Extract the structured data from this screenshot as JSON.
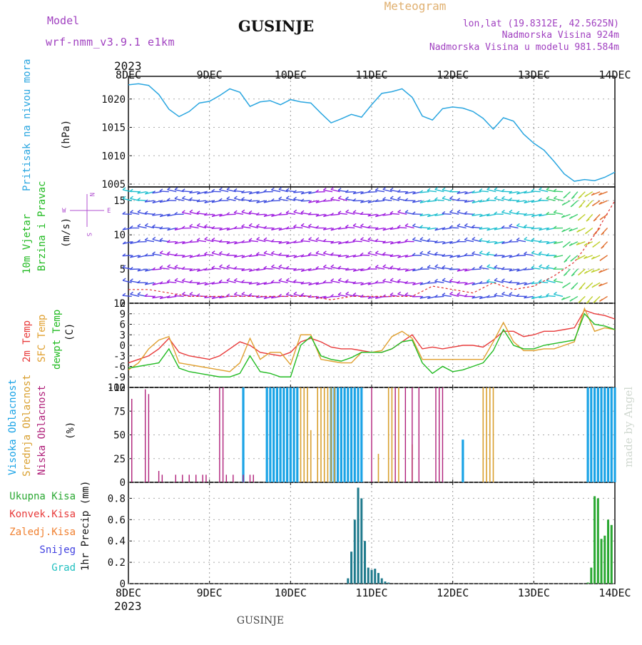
{
  "header": {
    "model_label": "Model",
    "model_name": "wrf-nmm_v3.9.1 e1km",
    "station": "GUSINJE",
    "meteogram_label": "Meteogram",
    "lonlat": "lon,lat (19.8312E, 42.5625N)",
    "elevation": "Nadmorska Visina 924m",
    "model_elevation": "Nadmorska Visina u modelu 981.584m",
    "year_top": "2023",
    "year_bottom": "2023",
    "footer_station": "GUSINJE",
    "watermark": "made by Angel"
  },
  "colors": {
    "pressure": "#2aa6e0",
    "temp2m": "#e83a3a",
    "sfc": "#e0a030",
    "dewpt": "#22bb22",
    "high_cloud": "#1aa3e6",
    "mid_cloud": "#d9a030",
    "low_cloud": "#b0207a",
    "precip_total": "#2aa832",
    "precip_conv": "#e83a3a",
    "freezing": "#f08030",
    "snow": "#4040e0",
    "graupel": "#20c0c0",
    "purple_text": "#a040c0",
    "meteogram_text": "#e0b070"
  },
  "panel_labels": {
    "pressure": {
      "line1": "Pritisak na nivou mora",
      "unit": "(hPa)"
    },
    "wind": {
      "line1": "10m Vjetar",
      "line2": "Brzina i Pravac",
      "unit": "(m/s)",
      "compass_n": "N",
      "compass_w": "W",
      "compass_e": "E",
      "compass_s": "S"
    },
    "temp": {
      "line1": "2m Temp",
      "line2": "SFC Temp",
      "line3": "dewpt Temp",
      "unit": "(C)"
    },
    "cloud": {
      "line1": "Visoka Oblacnost",
      "line2": "Srednja Oblacnost",
      "line3": "Niska Oblacnost",
      "unit": "(%)"
    },
    "precip": {
      "legend": [
        "Ukupna Kisa",
        "Konvek.Kisa",
        "Zaledj.Kisa",
        "Snijeg",
        "Grad"
      ],
      "unit": "1hr Precip (mm)"
    }
  },
  "chart_data": [
    {
      "type": "line",
      "panel": "pressure",
      "x_dates": [
        "8DEC",
        "9DEC",
        "10DEC",
        "11DEC",
        "12DEC",
        "13DEC",
        "14DEC"
      ],
      "ylim": [
        1004.5,
        1024
      ],
      "yticks": [
        1005,
        1010,
        1015,
        1020
      ],
      "series": [
        {
          "x_hours": [
            0,
            3,
            6,
            9,
            12,
            15,
            18,
            21,
            24,
            27,
            30,
            33,
            36,
            39,
            42,
            45,
            48,
            51,
            54,
            57,
            60,
            63,
            66,
            69,
            72,
            75,
            78,
            81,
            84,
            87,
            90,
            93,
            96,
            99,
            102,
            105,
            108,
            111,
            114,
            117,
            120,
            123,
            126,
            129,
            132,
            135,
            138,
            141,
            144
          ],
          "values": [
            1022.5,
            1022.7,
            1022.4,
            1020.8,
            1018.2,
            1016.9,
            1017.8,
            1019.3,
            1019.6,
            1020.6,
            1021.8,
            1021.2,
            1018.7,
            1019.5,
            1019.7,
            1019.0,
            1019.9,
            1019.5,
            1019.3,
            1017.5,
            1015.8,
            1016.5,
            1017.3,
            1016.8,
            1019.0,
            1021.0,
            1021.3,
            1021.8,
            1020.3,
            1017.0,
            1016.3,
            1018.3,
            1018.6,
            1018.4,
            1017.8,
            1016.6,
            1014.7,
            1016.7,
            1016.1,
            1013.8,
            1012.2,
            1011.0,
            1009.0,
            1006.8,
            1005.5,
            1005.8,
            1005.6,
            1006.2,
            1007.1
          ]
        }
      ]
    },
    {
      "type": "barbs",
      "panel": "wind",
      "ylim": [
        0,
        17
      ],
      "yticks": [
        0,
        5,
        10,
        15
      ],
      "wind_speed": {
        "x_hours": [
          0,
          6,
          12,
          18,
          24,
          30,
          36,
          42,
          48,
          54,
          60,
          66,
          72,
          78,
          84,
          90,
          96,
          102,
          108,
          114,
          120,
          126,
          132,
          138,
          144
        ],
        "values": [
          2,
          2,
          1.5,
          1,
          1,
          1,
          1,
          1,
          1,
          1,
          0.5,
          1,
          1,
          1,
          1,
          2.5,
          2,
          1.5,
          3,
          2,
          2.5,
          4,
          6,
          10,
          15
        ]
      }
    },
    {
      "type": "line",
      "panel": "temperature",
      "ylim": [
        -12,
        12
      ],
      "yticks": [
        12,
        9,
        6,
        3,
        0,
        -3,
        -6,
        -9,
        -12
      ],
      "x_hours": [
        0,
        3,
        6,
        9,
        12,
        15,
        18,
        21,
        24,
        27,
        30,
        33,
        36,
        39,
        42,
        45,
        48,
        51,
        54,
        57,
        60,
        63,
        66,
        69,
        72,
        75,
        78,
        81,
        84,
        87,
        90,
        93,
        96,
        99,
        102,
        105,
        108,
        111,
        114,
        117,
        120,
        123,
        126,
        129,
        132,
        135,
        138,
        141,
        144
      ],
      "series": [
        {
          "name": "2m Temp",
          "values": [
            -5,
            -4,
            -3,
            -1,
            2,
            -2,
            -3,
            -3.5,
            -4,
            -3,
            -1,
            1,
            0,
            -2,
            -2.5,
            -3,
            -2,
            1,
            2,
            1,
            -0.5,
            -1,
            -1,
            -1.5,
            -2,
            -2,
            -1,
            1,
            3,
            -1,
            -0.5,
            -1,
            -0.5,
            0,
            0,
            -0.5,
            1.5,
            4,
            4,
            2.5,
            3,
            4,
            4,
            4.5,
            5,
            10,
            9,
            8.5,
            7.5
          ]
        },
        {
          "name": "SFC Temp",
          "values": [
            -7,
            -5,
            -1,
            1.5,
            2.5,
            -5,
            -5.5,
            -6,
            -6.5,
            -7,
            -7.5,
            -5,
            2,
            -4,
            -2,
            -2,
            -5.5,
            3,
            3,
            -4,
            -4.5,
            -5,
            -5,
            -2,
            -2,
            -1.5,
            2.5,
            4,
            2,
            -4,
            -4,
            -4,
            -4,
            -4,
            -4,
            -4,
            1,
            6.5,
            1,
            -1.5,
            -1.5,
            -1,
            -1,
            0,
            1,
            10.5,
            4,
            5,
            4.5
          ]
        },
        {
          "name": "dewpt Temp",
          "values": [
            -6.5,
            -6,
            -5.5,
            -5,
            -1,
            -6.5,
            -7.5,
            -8,
            -8.5,
            -9,
            -9,
            -8,
            -3,
            -7.5,
            -8,
            -9,
            -9,
            0,
            2.5,
            -3,
            -4,
            -4.5,
            -3.5,
            -2,
            -2,
            -2,
            -1,
            1,
            1.5,
            -5,
            -8,
            -6,
            -7.5,
            -7,
            -6,
            -5,
            -1.5,
            4.5,
            0,
            -1,
            -1,
            0,
            0.5,
            1,
            1.5,
            9,
            6,
            5.5,
            4.5
          ]
        }
      ]
    },
    {
      "type": "bar",
      "panel": "cloud",
      "ylim": [
        0,
        100
      ],
      "yticks": [
        0,
        25,
        50,
        75,
        100
      ],
      "series": [
        {
          "name": "Visoka Oblacnost",
          "x_hours": [
            34,
            41,
            42,
            43,
            44,
            45,
            46,
            47,
            48,
            49,
            50,
            60,
            61,
            62,
            63,
            64,
            65,
            66,
            67,
            68,
            69,
            99,
            136,
            137,
            138,
            139,
            140,
            141,
            142,
            143,
            144
          ],
          "values": [
            100,
            100,
            100,
            100,
            100,
            100,
            100,
            100,
            100,
            100,
            100,
            100,
            100,
            100,
            100,
            100,
            100,
            100,
            100,
            100,
            100,
            45,
            100,
            100,
            100,
            100,
            100,
            100,
            100,
            100,
            100
          ]
        },
        {
          "name": "Srednja Oblacnost",
          "x_hours": [
            51,
            52,
            53,
            54,
            56,
            57,
            58,
            59,
            60,
            61,
            74,
            77,
            78,
            80,
            84,
            105,
            106,
            107,
            108
          ],
          "values": [
            100,
            100,
            100,
            55,
            100,
            100,
            100,
            100,
            100,
            100,
            30,
            100,
            100,
            100,
            40,
            100,
            100,
            100,
            100
          ]
        },
        {
          "name": "Niska Oblacnost",
          "x_hours": [
            1,
            5,
            6,
            9,
            10,
            14,
            16,
            18,
            20,
            22,
            23,
            27,
            28,
            29,
            31,
            34,
            36,
            37,
            72,
            79,
            82,
            84,
            86,
            91,
            92,
            93
          ],
          "values": [
            88,
            98,
            93,
            12,
            8,
            8,
            8,
            8,
            8,
            8,
            8,
            100,
            100,
            8,
            8,
            8,
            8,
            8,
            100,
            100,
            100,
            100,
            100,
            100,
            100,
            100
          ]
        }
      ]
    },
    {
      "type": "bar",
      "panel": "precip",
      "ylim": [
        0,
        0.95
      ],
      "yticks": [
        0,
        0.2,
        0.4,
        0.6,
        0.8
      ],
      "series": [
        {
          "name": "Ukupna Kisa",
          "x_hours": [
            65,
            66,
            67,
            68,
            69,
            70,
            71,
            72,
            73,
            74,
            75,
            76,
            77,
            136,
            137,
            138,
            139,
            140,
            141,
            142,
            143
          ],
          "values": [
            0.05,
            0.3,
            0.6,
            0.9,
            0.8,
            0.4,
            0.15,
            0.13,
            0.14,
            0.1,
            0.05,
            0.02,
            0.01,
            0.01,
            0.15,
            0.82,
            0.8,
            0.42,
            0.45,
            0.6,
            0.55
          ]
        }
      ]
    }
  ]
}
